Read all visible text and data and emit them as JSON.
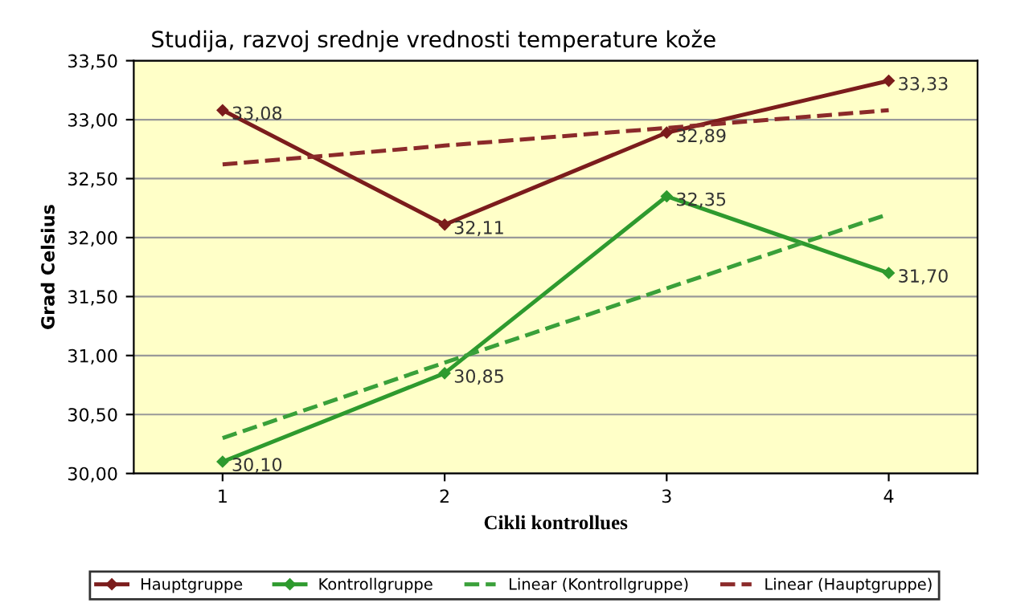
{
  "chart_data": {
    "type": "line",
    "title": "Studija, razvoj srednje vrednosti temperature kože",
    "xlabel": "Cikli kontrollues",
    "ylabel": "Grad Celsius",
    "categories": [
      "1",
      "2",
      "3",
      "4"
    ],
    "series": [
      {
        "name": "Hauptgruppe",
        "color": "#7b1c1c",
        "values": [
          33.08,
          32.11,
          32.89,
          33.33
        ],
        "value_labels": [
          "33,08",
          "32,11",
          "32,89",
          "33,33"
        ],
        "marker": "diamond",
        "line_style": "solid"
      },
      {
        "name": "Kontrollgruppe",
        "color": "#2e9a2e",
        "values": [
          30.1,
          30.85,
          32.35,
          31.7
        ],
        "value_labels": [
          "30,10",
          "30,85",
          "32,35",
          "31,70"
        ],
        "marker": "diamond",
        "line_style": "solid"
      },
      {
        "name": "Linear (Kontrollgruppe)",
        "color": "#3aa03a",
        "values": [
          30.3,
          30.94,
          31.57,
          32.2
        ],
        "marker": "none",
        "line_style": "dashed"
      },
      {
        "name": "Linear (Hauptgruppe)",
        "color": "#8b2a2a",
        "values": [
          32.62,
          32.78,
          32.93,
          33.08
        ],
        "marker": "none",
        "line_style": "dashed"
      }
    ],
    "ylim": [
      30,
      33.5
    ],
    "yticks": [
      {
        "value": 30,
        "label": "30,00"
      },
      {
        "value": 30.5,
        "label": "30,50"
      },
      {
        "value": 31,
        "label": "31,00"
      },
      {
        "value": 31.5,
        "label": "31,50"
      },
      {
        "value": 32,
        "label": "32,00"
      },
      {
        "value": 32.5,
        "label": "32,50"
      },
      {
        "value": 33,
        "label": "33,00"
      },
      {
        "value": 33.5,
        "label": "33,50"
      }
    ],
    "grid": "y",
    "legend": "bottom"
  }
}
